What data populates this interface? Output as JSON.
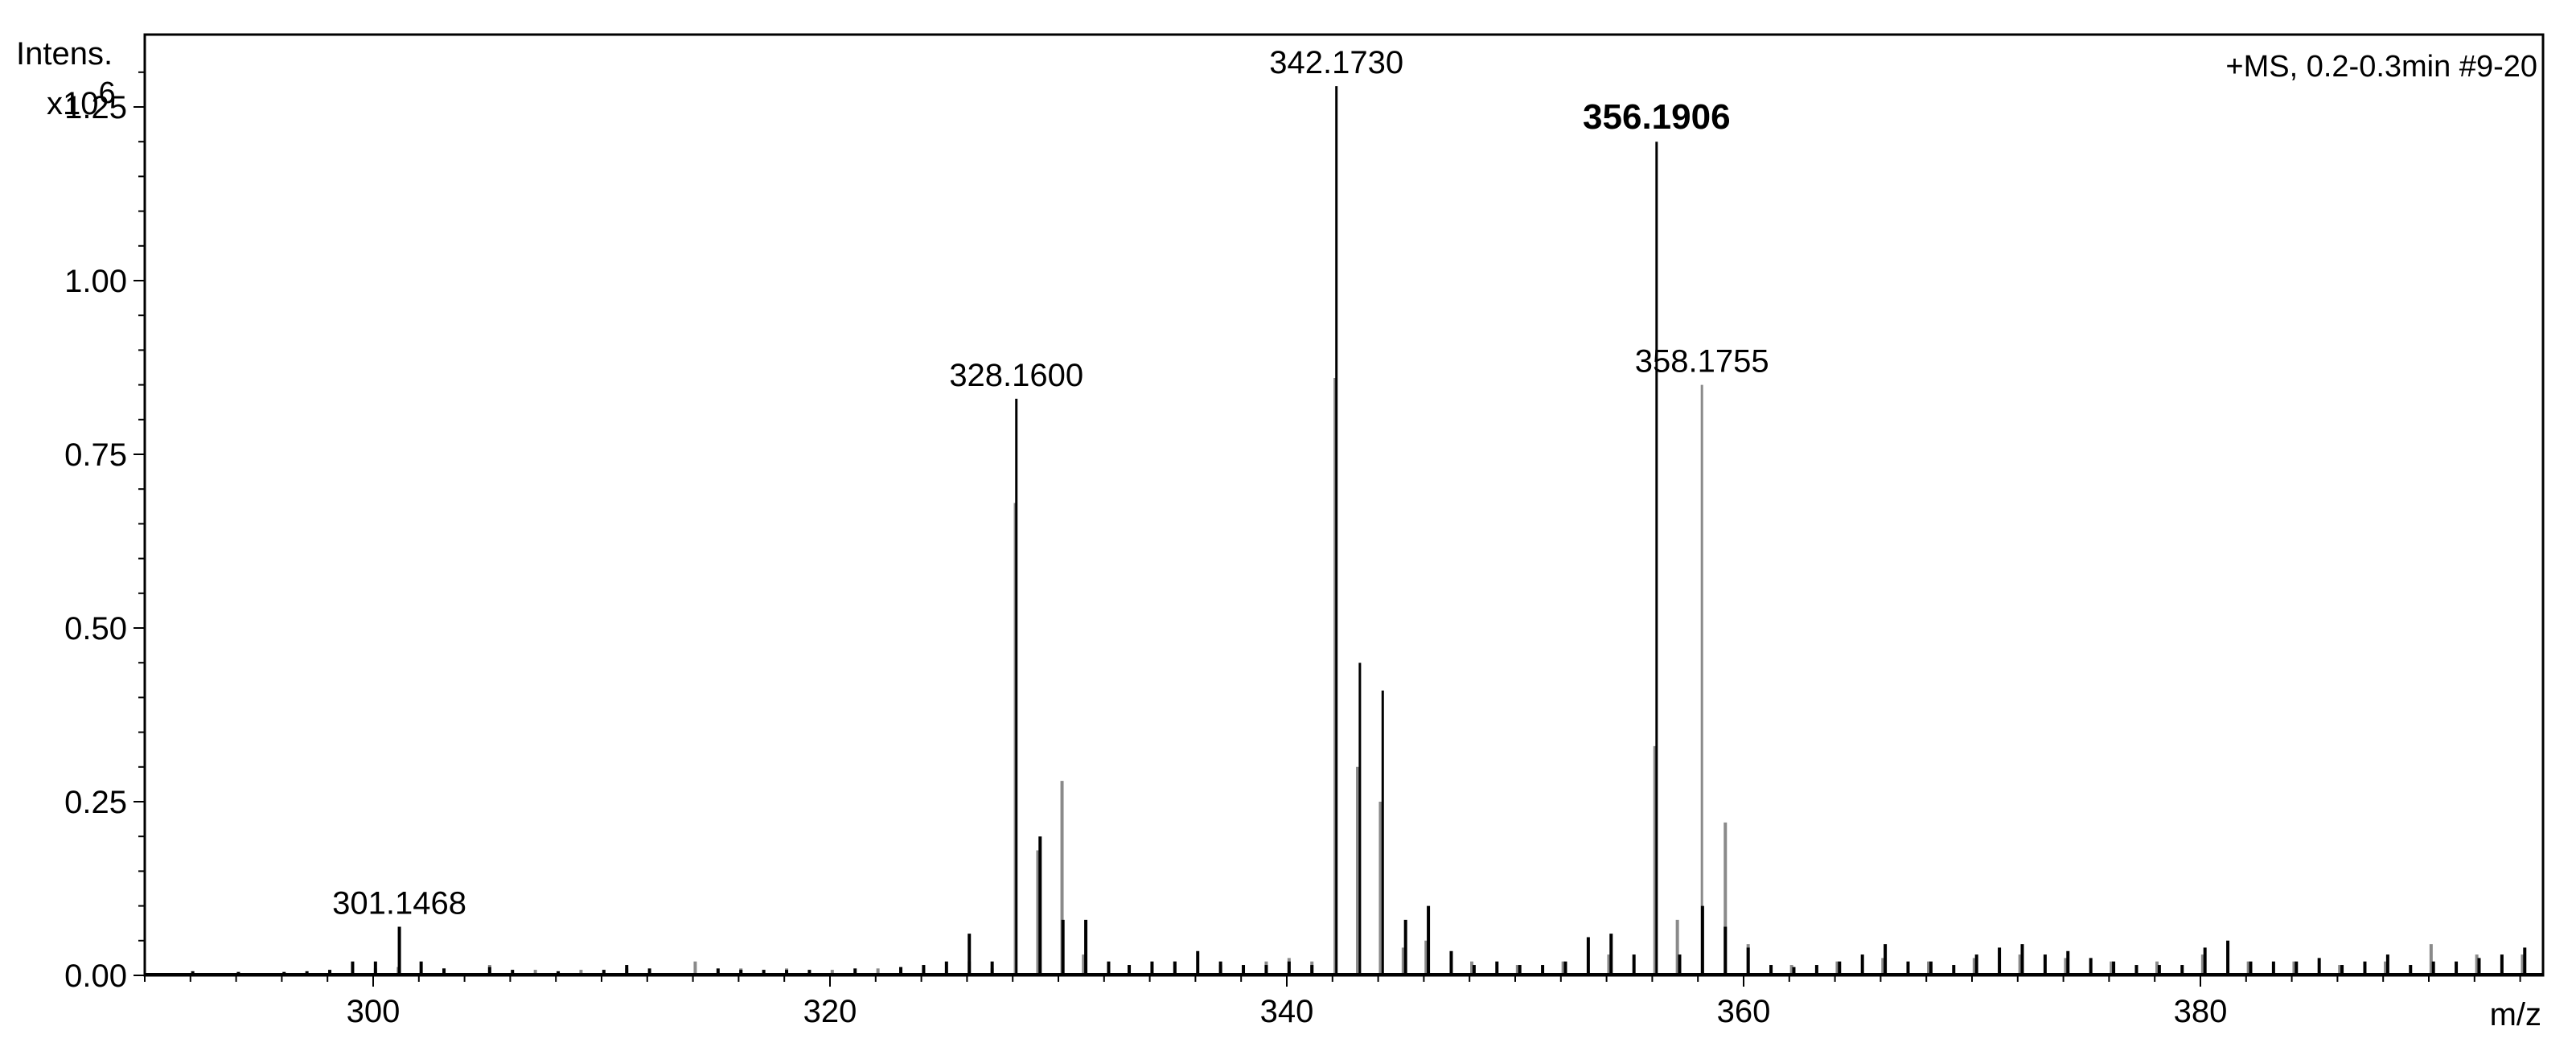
{
  "chart_data": {
    "type": "bar",
    "title": "+MS, 0.2-0.3min #9-20",
    "ylabel": "Intens.",
    "yscale_label": "x10",
    "yscale_exp": "6",
    "xlabel": "m/z",
    "xlim": [
      290,
      395
    ],
    "ylim": [
      0,
      1.3
    ],
    "x_ticks": [
      "300",
      "320",
      "340",
      "360",
      "380"
    ],
    "x_tick_values": [
      300,
      320,
      340,
      360,
      380
    ],
    "y_ticks": [
      "0.00",
      "0.25",
      "0.50",
      "0.75",
      "1.00",
      "1.25"
    ],
    "y_tick_values": [
      0,
      0.25,
      0.5,
      0.75,
      1.0,
      1.25
    ],
    "grid": false,
    "colors": {
      "series1": "#000000",
      "series2": "#8a8a8a"
    },
    "series": [
      {
        "x": [
          292.1,
          294.1,
          296.1,
          297.1,
          298.1,
          299.1,
          300.1,
          301.1468,
          302.1,
          303.1,
          305.1,
          306.1,
          308.1,
          310.1,
          311.1,
          312.1,
          315.1,
          316.1,
          317.1,
          318.1,
          319.1,
          321.1,
          323.1,
          324.1,
          325.1,
          326.1,
          327.1,
          328.16,
          329.2,
          330.2,
          331.2,
          332.2,
          333.1,
          334.1,
          335.1,
          336.1,
          337.1,
          338.1,
          339.1,
          340.1,
          341.1,
          342.173,
          343.2,
          344.2,
          345.2,
          346.2,
          347.2,
          348.2,
          349.2,
          350.2,
          351.2,
          352.2,
          353.2,
          354.2,
          355.2,
          356.1906,
          357.2,
          358.2,
          359.2,
          360.2,
          361.2,
          362.2,
          363.2,
          364.2,
          365.2,
          366.2,
          367.2,
          368.2,
          369.2,
          370.2,
          371.2,
          372.2,
          373.2,
          374.2,
          375.2,
          376.2,
          377.2,
          378.2,
          379.2,
          380.2,
          381.2,
          382.2,
          383.2,
          384.2,
          385.2,
          386.2,
          387.2,
          388.2,
          389.2,
          390.2,
          391.2,
          392.2,
          393.2,
          394.2
        ],
        "values": [
          0.006,
          0.005,
          0.005,
          0.006,
          0.008,
          0.02,
          0.02,
          0.07,
          0.02,
          0.01,
          0.012,
          0.008,
          0.006,
          0.008,
          0.015,
          0.01,
          0.01,
          0.008,
          0.008,
          0.008,
          0.008,
          0.01,
          0.012,
          0.015,
          0.02,
          0.06,
          0.02,
          0.83,
          0.2,
          0.08,
          0.08,
          0.02,
          0.015,
          0.02,
          0.02,
          0.035,
          0.02,
          0.015,
          0.015,
          0.02,
          0.015,
          1.28,
          0.45,
          0.41,
          0.08,
          0.1,
          0.035,
          0.015,
          0.02,
          0.015,
          0.015,
          0.02,
          0.055,
          0.06,
          0.03,
          1.2,
          0.03,
          0.1,
          0.07,
          0.04,
          0.015,
          0.012,
          0.015,
          0.02,
          0.03,
          0.045,
          0.02,
          0.02,
          0.015,
          0.03,
          0.04,
          0.045,
          0.03,
          0.035,
          0.025,
          0.02,
          0.015,
          0.015,
          0.015,
          0.04,
          0.05,
          0.02,
          0.02,
          0.02,
          0.025,
          0.015,
          0.02,
          0.03,
          0.015,
          0.02,
          0.02,
          0.025,
          0.03,
          0.04
        ]
      },
      {
        "x": [
          300.1,
          301.1,
          303.1,
          305.1,
          307.1,
          309.1,
          311.1,
          314.1,
          316.1,
          318.1,
          320.1,
          322.1,
          324.1,
          326.1,
          327.1,
          328.1,
          329.1,
          330.16,
          331.1,
          333.1,
          335.1,
          337.1,
          339.1,
          340.1,
          341.1,
          342.1,
          343.1,
          344.1,
          345.1,
          346.1,
          348.1,
          350.1,
          352.1,
          354.1,
          356.1,
          357.1,
          358.1755,
          359.2,
          360.2,
          362.1,
          364.1,
          366.1,
          368.1,
          370.1,
          372.1,
          374.1,
          376.1,
          378.1,
          380.1,
          382.1,
          384.1,
          386.1,
          388.1,
          390.1,
          392.1,
          394.1
        ],
        "values": [
          0.01,
          0.012,
          0.01,
          0.015,
          0.008,
          0.008,
          0.01,
          0.02,
          0.01,
          0.01,
          0.008,
          0.01,
          0.01,
          0.02,
          0.01,
          0.68,
          0.18,
          0.28,
          0.03,
          0.015,
          0.02,
          0.015,
          0.02,
          0.025,
          0.02,
          0.86,
          0.3,
          0.25,
          0.04,
          0.05,
          0.02,
          0.015,
          0.02,
          0.03,
          0.33,
          0.08,
          0.85,
          0.22,
          0.045,
          0.015,
          0.02,
          0.025,
          0.02,
          0.025,
          0.03,
          0.025,
          0.02,
          0.02,
          0.03,
          0.02,
          0.02,
          0.015,
          0.02,
          0.045,
          0.03,
          0.03
        ]
      }
    ],
    "annotations": [
      {
        "label": "301.1468",
        "x": 301.1468,
        "y": 0.07,
        "bold": false
      },
      {
        "label": "328.1600",
        "x": 328.16,
        "y": 0.83,
        "bold": false
      },
      {
        "label": "342.1730",
        "x": 342.173,
        "y": 1.28,
        "bold": false
      },
      {
        "label": "356.1906",
        "x": 356.1906,
        "y": 1.2,
        "bold": true
      },
      {
        "label": "358.1755",
        "x": 358.1755,
        "y": 0.85,
        "bold": false
      }
    ]
  }
}
